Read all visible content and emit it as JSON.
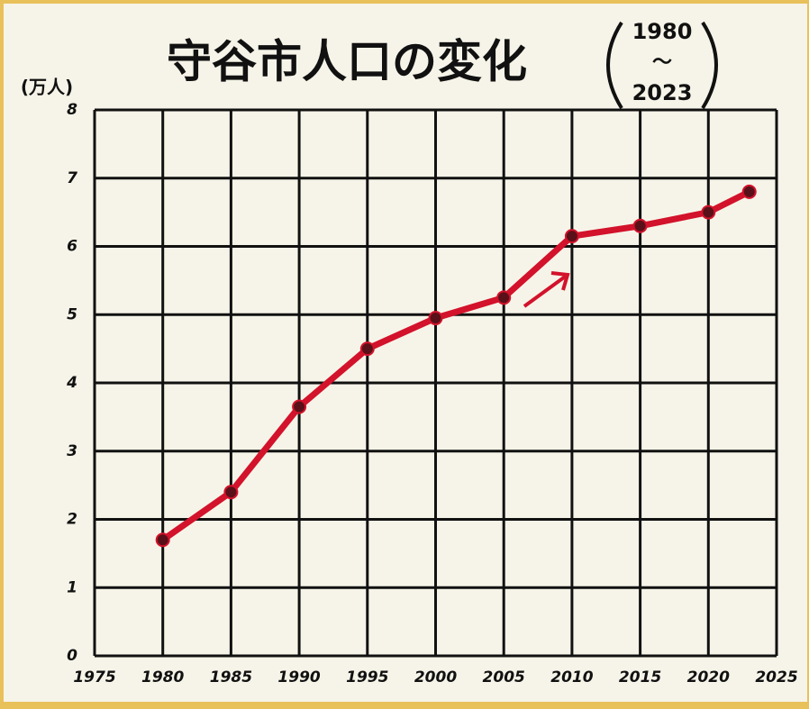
{
  "chart_data": {
    "type": "line",
    "title": "守谷市人口の変化",
    "subtitle_lines": [
      "1980",
      "〜",
      "2023"
    ],
    "ylabel": "(万人)",
    "x": [
      1980,
      1985,
      1990,
      1995,
      2000,
      2005,
      2010,
      2015,
      2020,
      2023
    ],
    "series": [
      {
        "name": "守谷市人口",
        "color": "#d3122b",
        "values": [
          1.7,
          2.4,
          3.65,
          4.5,
          4.95,
          5.25,
          6.15,
          6.3,
          6.5,
          6.8
        ]
      }
    ],
    "xlim": [
      1975,
      2025
    ],
    "xticks": [
      1975,
      1980,
      1985,
      1990,
      1995,
      2000,
      2005,
      2010,
      2015,
      2020,
      2025
    ],
    "ylim": [
      0,
      8
    ],
    "yticks": [
      0,
      1,
      2,
      3,
      4,
      5,
      6,
      7,
      8
    ],
    "grid": true
  }
}
